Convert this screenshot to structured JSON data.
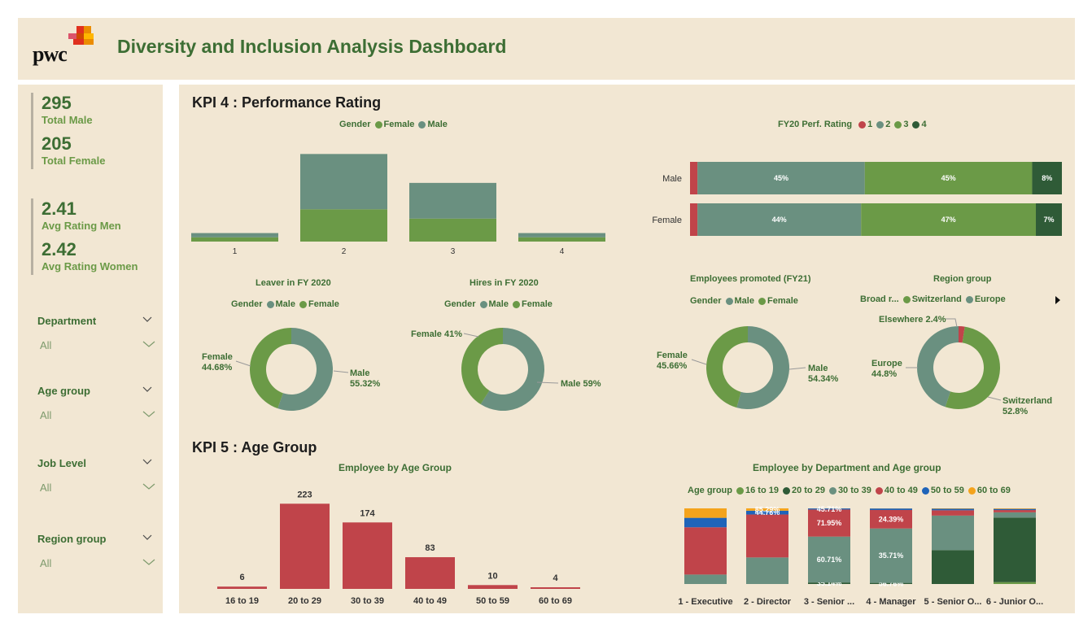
{
  "header": {
    "logo_text": "pwc",
    "title": "Diversity and Inclusion Analysis Dashboard"
  },
  "kpis": {
    "total_male": {
      "value": "295",
      "label": "Total Male"
    },
    "total_female": {
      "value": "205",
      "label": "Total Female"
    },
    "avg_men": {
      "value": "2.41",
      "label": "Avg Rating Men"
    },
    "avg_women": {
      "value": "2.42",
      "label": "Avg Rating Women"
    }
  },
  "filters": [
    {
      "label": "Department",
      "value": "All"
    },
    {
      "label": "Age group",
      "value": "All"
    },
    {
      "label": "Job Level",
      "value": "All"
    },
    {
      "label": "Region group",
      "value": "All"
    }
  ],
  "colors": {
    "female": "#6b9a47",
    "male": "#6a9080",
    "r1": "#c0444a",
    "r2": "#6a9080",
    "r3": "#6b9a47",
    "r4": "#2f5b37",
    "bar_red": "#c0444a",
    "a5059": "#1f64b9",
    "a6069": "#f4a31c"
  },
  "kpi4": {
    "title": "KPI 4 : Performance Rating",
    "rating_gender": {
      "legend_title": "Gender",
      "legend": [
        "Female",
        "Male"
      ],
      "categories": [
        "1",
        "2",
        "3",
        "4"
      ],
      "female": [
        5,
        38,
        27,
        5
      ],
      "male": [
        5,
        65,
        42,
        5
      ],
      "ymax": 110
    },
    "fy20": {
      "legend_title": "FY20 Perf. Rating",
      "legend": [
        "1",
        "2",
        "3",
        "4"
      ],
      "rows": [
        {
          "label": "Male",
          "values": [
            2,
            45,
            45,
            8
          ],
          "labels": [
            "",
            "45%",
            "45%",
            "8%"
          ]
        },
        {
          "label": "Female",
          "values": [
            2,
            44,
            47,
            7
          ],
          "labels": [
            "",
            "44%",
            "47%",
            "7%"
          ]
        }
      ]
    },
    "leaver": {
      "title": "Leaver in FY 2020",
      "legend_title": "Gender",
      "legend": [
        "Male",
        "Female"
      ],
      "male": 55.32,
      "female": 44.68,
      "male_label": [
        "Male",
        "55.32%"
      ],
      "female_label": [
        "Female",
        "44.68%"
      ]
    },
    "hires": {
      "title": "Hires in FY 2020",
      "legend_title": "Gender",
      "legend": [
        "Male",
        "Female"
      ],
      "male": 59,
      "female": 41,
      "male_label": "Male 59%",
      "female_label": "Female 41%"
    },
    "promoted": {
      "title": "Employees promoted (FY21)",
      "legend_title": "Gender",
      "legend": [
        "Male",
        "Female"
      ],
      "male": 54.34,
      "female": 45.66,
      "male_label": [
        "Male",
        "54.34%"
      ],
      "female_label": [
        "Female",
        "45.66%"
      ]
    },
    "region": {
      "title": "Region group",
      "legend": [
        "Broad r...",
        "Switzerland",
        "Europe"
      ],
      "elsewhere": 2.4,
      "switzerland": 52.8,
      "europe": 44.8,
      "elsewhere_label": "Elsewhere 2.4%",
      "switzerland_label": [
        "Switzerland",
        "52.8%"
      ],
      "europe_label": [
        "Europe",
        "44.8%"
      ]
    }
  },
  "kpi5": {
    "title": "KPI 5 : Age Group",
    "age_chart": {
      "type": "bar",
      "title": "Employee by Age Group",
      "categories": [
        "16 to 19",
        "20 to 29",
        "30 to 39",
        "40 to 49",
        "50 to 59",
        "60 to 69"
      ],
      "values": [
        6,
        223,
        174,
        83,
        10,
        4
      ],
      "ylim": [
        0,
        230
      ]
    },
    "dept_chart": {
      "type": "bar",
      "title": "Employee by Department and Age group",
      "legend_title": "Age group",
      "legend": [
        "16 to 19",
        "20 to 29",
        "30 to 39",
        "40 to 49",
        "50 to 59",
        "60 to 69"
      ],
      "categories": [
        "1 - Executive",
        "2 - Director",
        "3 - Senior ...",
        "4 - Manager",
        "5 - Senior O...",
        "6 - Junior O..."
      ],
      "series": [
        {
          "name": "16 to 19",
          "values": [
            0,
            0,
            0,
            0,
            0,
            2.5
          ]
        },
        {
          "name": "20 to 29",
          "values": [
            0,
            0,
            2,
            1.5,
            44.76,
            85.29
          ]
        },
        {
          "name": "30 to 39",
          "values": [
            12.5,
            35.14,
            60.71,
            71.95,
            45.71,
            7
          ]
        },
        {
          "name": "40 to 49",
          "values": [
            62.5,
            56.76,
            35.71,
            24.39,
            7,
            3
          ]
        },
        {
          "name": "50 to 59",
          "values": [
            12.5,
            5,
            1.5,
            2,
            2,
            1.5
          ]
        },
        {
          "name": "60 to 69",
          "values": [
            12.5,
            3.1,
            0.08,
            0.16,
            0.53,
            0.71
          ]
        }
      ],
      "labels": [
        [
          "",
          "",
          "",
          "62.50%",
          "",
          ""
        ],
        [
          "",
          "",
          "35.14%",
          "56.76%",
          "",
          ""
        ],
        [
          "",
          "",
          "60.71%",
          "35.71%",
          "",
          ""
        ],
        [
          "",
          "",
          "71.95%",
          "24.39%",
          "",
          ""
        ],
        [
          "",
          "44.76%",
          "45.71%",
          "",
          "",
          ""
        ],
        [
          "",
          "85.29%",
          "",
          "",
          "",
          ""
        ]
      ]
    }
  }
}
